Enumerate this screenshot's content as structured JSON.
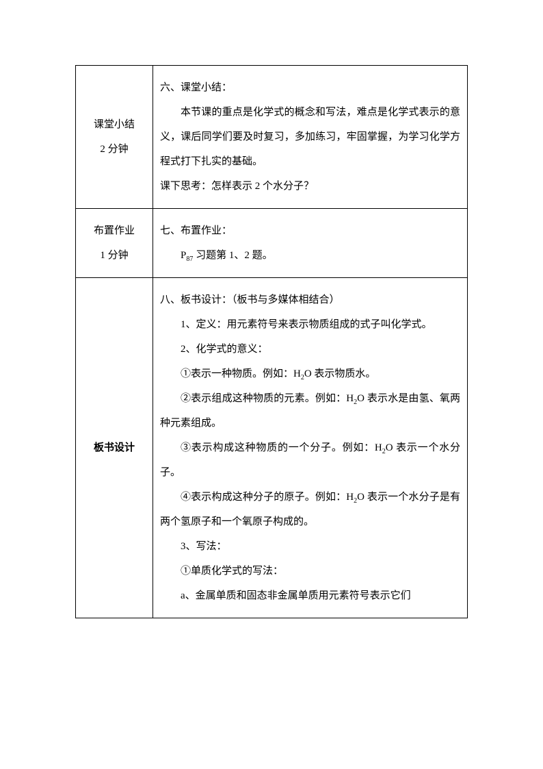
{
  "rows": [
    {
      "label": [
        "课堂小结",
        "2 分钟"
      ],
      "labelBold": false,
      "content": [
        {
          "indent": false,
          "html": "六、课堂小结："
        },
        {
          "indent": true,
          "html": "本节课的重点是化学式的概念和写法，难点是化学式表示的意义，课后同学们要及时复习，多加练习，牢固掌握，为学习化学方程式打下扎实的基础。"
        },
        {
          "indent": false,
          "html": "课下思考：怎样表示 2 个水分子？"
        }
      ]
    },
    {
      "label": [
        "布置作业",
        "1 分钟"
      ],
      "labelBold": false,
      "content": [
        {
          "indent": false,
          "html": "七、布置作业："
        },
        {
          "indent": true,
          "html": "P<span class=\"sub\">87</span> 习题第 1、2 题。"
        }
      ]
    },
    {
      "label": [
        "板书设计"
      ],
      "labelBold": true,
      "content": [
        {
          "indent": false,
          "html": "八、板书设计：（板书与多媒体相结合）"
        },
        {
          "indent": true,
          "html": "1、定义：用元素符号来表示物质组成的式子叫化学式。"
        },
        {
          "indent": true,
          "html": "2、化学式的意义："
        },
        {
          "indent": true,
          "html": "①表示一种物质。例如：H<span class=\"sub\">2</span>O 表示物质水。"
        },
        {
          "indent": true,
          "html": "②表示组成这种物质的元素。例如：H<span class=\"sub\">2</span>O 表示水是由氢、氧两种元素组成。"
        },
        {
          "indent": true,
          "html": "③表示构成这种物质的一个分子。例如：H<span class=\"sub\">2</span>O 表示一个水分子。"
        },
        {
          "indent": true,
          "html": "④表示构成这种分子的原子。例如：H<span class=\"sub\">2</span>O 表示一个水分子是有两个氢原子和一个氧原子构成的。"
        },
        {
          "indent": true,
          "html": "3、写法："
        },
        {
          "indent": true,
          "html": "①单质化学式的写法："
        },
        {
          "indent": true,
          "html": "a、金属单质和固态非金属单质用元素符号表示它们"
        }
      ]
    }
  ]
}
